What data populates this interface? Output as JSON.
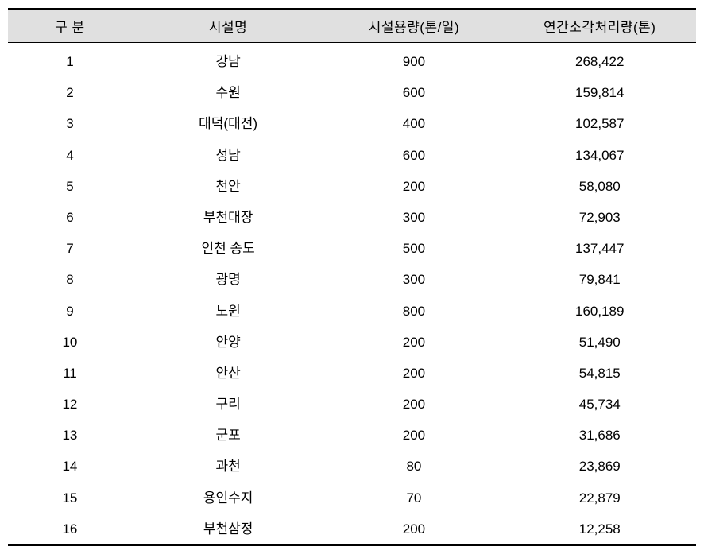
{
  "table": {
    "type": "table",
    "background_color": "#ffffff",
    "header_background": "#e0e0e0",
    "border_color": "#000000",
    "text_color": "#000000",
    "font_size": 17,
    "columns": [
      {
        "key": "num",
        "label": "구 분",
        "width": "18%",
        "align": "center"
      },
      {
        "key": "name",
        "label": "시설명",
        "width": "28%",
        "align": "center"
      },
      {
        "key": "capacity",
        "label": "시설용량(톤/일)",
        "width": "26%",
        "align": "center"
      },
      {
        "key": "annual",
        "label": "연간소각처리량(톤)",
        "width": "28%",
        "align": "center"
      }
    ],
    "rows": [
      {
        "num": "1",
        "name": "강남",
        "capacity": "900",
        "annual": "268,422"
      },
      {
        "num": "2",
        "name": "수원",
        "capacity": "600",
        "annual": "159,814"
      },
      {
        "num": "3",
        "name": "대덕(대전)",
        "capacity": "400",
        "annual": "102,587"
      },
      {
        "num": "4",
        "name": "성남",
        "capacity": "600",
        "annual": "134,067"
      },
      {
        "num": "5",
        "name": "천안",
        "capacity": "200",
        "annual": "58,080"
      },
      {
        "num": "6",
        "name": "부천대장",
        "capacity": "300",
        "annual": "72,903"
      },
      {
        "num": "7",
        "name": "인천 송도",
        "capacity": "500",
        "annual": "137,447"
      },
      {
        "num": "8",
        "name": "광명",
        "capacity": "300",
        "annual": "79,841"
      },
      {
        "num": "9",
        "name": "노원",
        "capacity": "800",
        "annual": "160,189"
      },
      {
        "num": "10",
        "name": "안양",
        "capacity": "200",
        "annual": "51,490"
      },
      {
        "num": "11",
        "name": "안산",
        "capacity": "200",
        "annual": "54,815"
      },
      {
        "num": "12",
        "name": "구리",
        "capacity": "200",
        "annual": "45,734"
      },
      {
        "num": "13",
        "name": "군포",
        "capacity": "200",
        "annual": "31,686"
      },
      {
        "num": "14",
        "name": "과천",
        "capacity": "80",
        "annual": "23,869"
      },
      {
        "num": "15",
        "name": "용인수지",
        "capacity": "70",
        "annual": "22,879"
      },
      {
        "num": "16",
        "name": "부천삼정",
        "capacity": "200",
        "annual": "12,258"
      }
    ]
  }
}
